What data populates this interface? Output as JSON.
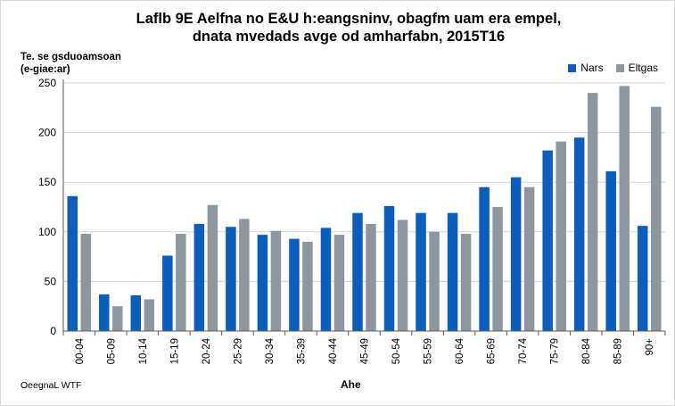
{
  "header": {
    "title_line1": "Laflb 9E Aelfna no E&U h:eangsninv, obagfm uam era empel,",
    "title_line2": "dnata mvedads avge od amharfabn, 2015T16"
  },
  "footer": {
    "source": "OeegnaL WTF"
  },
  "colors": {
    "series1": "#0b5ebc",
    "series2": "#8e979f",
    "grid": "#d4d4d4",
    "axis": "#595959"
  },
  "chart_data": {
    "type": "bar",
    "title": "Laflb 9E Aelfna no E&U h:eangsninv, obagfm uam era empel, dnata mvedads avge od amharfabn, 2015T16",
    "ylabel_line1": "Te. se gsduoamsoan",
    "ylabel_line2": "(e-giae:ar)",
    "xlabel": "Ahe",
    "ylim": [
      0,
      250
    ],
    "yticks": [
      0,
      50,
      100,
      150,
      200,
      250
    ],
    "grid": true,
    "legend_position": "top-right",
    "categories": [
      "00-04",
      "05-09",
      "10-14",
      "15-19",
      "20-24",
      "25-29",
      "30-34",
      "35-39",
      "40-44",
      "45-49",
      "50-54",
      "55-59",
      "60-64",
      "65-69",
      "70-74",
      "75-79",
      "80-84",
      "85-89",
      "90+"
    ],
    "series": [
      {
        "name": "Nars",
        "color": "#0b5ebc",
        "values": [
          136,
          37,
          36,
          76,
          108,
          105,
          97,
          93,
          104,
          119,
          126,
          119,
          119,
          145,
          155,
          182,
          195,
          161,
          106
        ]
      },
      {
        "name": "Eltgas",
        "color": "#8e979f",
        "values": [
          98,
          25,
          32,
          98,
          127,
          113,
          101,
          90,
          97,
          108,
          112,
          100,
          98,
          125,
          145,
          191,
          240,
          247,
          226
        ]
      }
    ]
  }
}
